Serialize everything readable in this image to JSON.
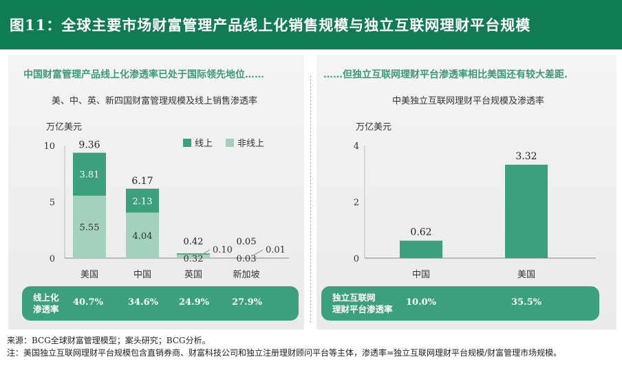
{
  "title": "图11：全球主要市场财富管理产品线上化销售规模与独立互联网理财平台规模",
  "left_subhead": "中国财富管理产品线上化渗透率已处于国际领先地位……",
  "right_subhead": "……但独立互联网理财平台渗透率相比美国还有较大差距.",
  "footer": {
    "source": "来源：BCG全球财富管理模型；案头研究；BCG分析。",
    "note": "注：美国独立互联网理财平台规模包含直销券商、财富科技公司和独立注册理财顾问平台等主体，渗透率=独立互联网理财平台规模/财富管理市场规模。"
  },
  "colors": {
    "title_bg": "#0f7c54",
    "online": "#3da07d",
    "offline": "#a3d1bc",
    "band": "#3da07d"
  },
  "chart_data": [
    {
      "type": "bar",
      "stacked": true,
      "title": "美、中、英、新四国财富管理规模及线上销售渗透率",
      "ylabel": "万亿美元",
      "ylim": [
        0,
        10
      ],
      "yticks": [
        "0",
        "5",
        "10"
      ],
      "categories": [
        "美国",
        "中国",
        "英国",
        "新加坡"
      ],
      "totals": [
        "9.36",
        "6.17",
        "0.42",
        "0.05"
      ],
      "series": [
        {
          "name": "非线上",
          "values": [
            5.55,
            4.04,
            0.32,
            0.03
          ]
        },
        {
          "name": "线上",
          "values": [
            3.81,
            2.13,
            0.1,
            0.01
          ]
        }
      ],
      "offline_labels": [
        "5.55",
        "4.04",
        "0.32",
        "0.03"
      ],
      "online_labels": [
        "3.81",
        "2.13",
        "0.10",
        "0.01"
      ],
      "legend": {
        "placement": "top-right",
        "entries": [
          "线上",
          "非线上"
        ]
      },
      "penetration": {
        "label": "线上化\n渗透率",
        "values": [
          "40.7%",
          "34.6%",
          "24.9%",
          "27.9%"
        ]
      }
    },
    {
      "type": "bar",
      "title": "中美独立互联网理财平台规模及渗透率",
      "ylabel": "万亿美元",
      "ylim": [
        0,
        4
      ],
      "yticks": [
        "0",
        "2",
        "4"
      ],
      "categories": [
        "中国",
        "美国"
      ],
      "values": [
        0.62,
        3.32
      ],
      "value_labels": [
        "0.62",
        "3.32"
      ],
      "penetration": {
        "label": "独立互联网\n理财平台渗透率",
        "values": [
          "10.0%",
          "35.5%"
        ]
      }
    }
  ]
}
